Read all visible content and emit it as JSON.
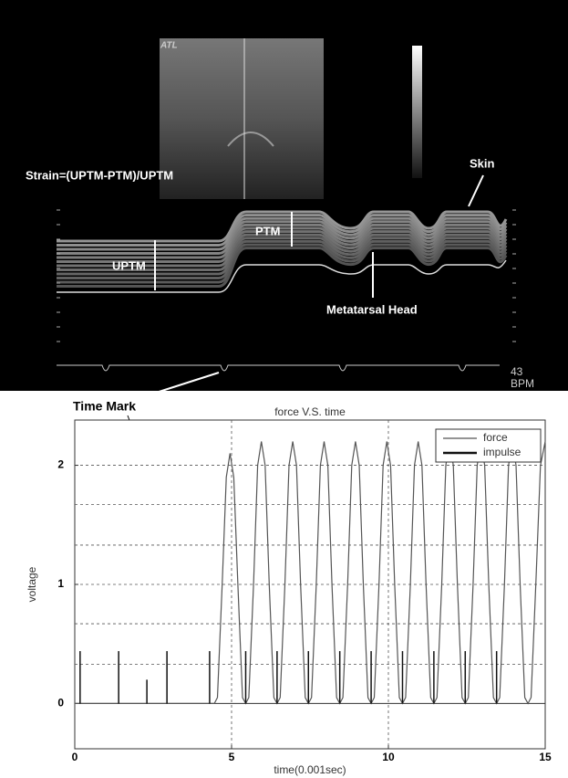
{
  "image": {
    "logo": "ATL",
    "formula": "Strain=(UPTM-PTM)/UPTM",
    "skin": "Skin",
    "ptm": "PTM",
    "uptm": "UPTM",
    "head": "Metatarsal Head",
    "rate": "43",
    "rate_unit": "BPM",
    "time_mark": "Time Mark"
  },
  "chart_data": {
    "type": "line",
    "title": "force V.S. time",
    "xlabel": "time(0.001sec)",
    "ylabel": "voltage",
    "xlim": [
      0,
      15
    ],
    "xticks": [
      0,
      5,
      10,
      15
    ],
    "ylim": [
      -0.38,
      2.38
    ],
    "yticks": [
      0,
      1,
      2
    ],
    "ygrid": [
      0.33,
      0.67,
      1,
      1.33,
      1.67,
      2
    ],
    "xgrid": [
      5,
      10
    ],
    "legend": "upper right",
    "series": [
      {
        "name": "force",
        "color": "#555555",
        "width": 1.2,
        "x": [
          0,
          4.45,
          4.55,
          4.7,
          4.83,
          4.95,
          5.07,
          5.2,
          5.35,
          5.45,
          5.55,
          5.7,
          5.83,
          5.95,
          6.07,
          6.2,
          6.35,
          6.45,
          6.55,
          6.7,
          6.83,
          6.95,
          7.07,
          7.2,
          7.35,
          7.45,
          7.55,
          7.7,
          7.83,
          7.95,
          8.07,
          8.2,
          8.35,
          8.45,
          8.55,
          8.7,
          8.83,
          8.95,
          9.07,
          9.2,
          9.35,
          9.45,
          9.55,
          9.7,
          9.83,
          9.95,
          10.07,
          10.2,
          10.35,
          10.45,
          10.55,
          10.7,
          10.83,
          10.95,
          11.07,
          11.2,
          11.35,
          11.45,
          11.55,
          11.7,
          11.83,
          11.95,
          12.07,
          12.2,
          12.35,
          12.45,
          12.55,
          12.7,
          12.83,
          12.95,
          13.07,
          13.2,
          13.35,
          13.45,
          13.55,
          13.7,
          13.83,
          13.95,
          14.07,
          14.2,
          14.35,
          14.45,
          14.55,
          14.7,
          14.85,
          15
        ],
        "values": [
          0,
          0,
          0.05,
          1.0,
          1.9,
          2.1,
          1.9,
          1.0,
          0.05,
          0,
          0.05,
          1.0,
          2.0,
          2.2,
          2.0,
          1.0,
          0.05,
          0,
          0.05,
          1.0,
          2.0,
          2.2,
          2.0,
          1.0,
          0.05,
          0,
          0.05,
          1.0,
          2.0,
          2.2,
          2.0,
          1.0,
          0.05,
          0,
          0.05,
          1.0,
          2.0,
          2.2,
          2.0,
          1.0,
          0.05,
          0,
          0.05,
          1.0,
          2.0,
          2.2,
          2.0,
          1.0,
          0.05,
          0,
          0.05,
          1.0,
          2.0,
          2.2,
          2.0,
          1.0,
          0.05,
          0,
          0.05,
          1.0,
          2.0,
          2.2,
          2.0,
          1.0,
          0.05,
          0,
          0.05,
          1.0,
          2.0,
          2.2,
          2.0,
          1.0,
          0.05,
          0,
          0.05,
          1.0,
          2.0,
          2.2,
          2.0,
          1.0,
          0.05,
          0,
          0.05,
          1.0,
          2.0,
          2.2
        ]
      },
      {
        "name": "impulse",
        "color": "#111111",
        "width": 2.5,
        "kind": "impulse",
        "x": [
          0.17,
          1.4,
          2.3,
          2.94,
          4.3,
          5.45,
          6.45,
          7.45,
          8.45,
          9.45,
          10.45,
          11.45,
          12.45,
          13.45
        ],
        "values": [
          0.44,
          0.44,
          0.2,
          0.44,
          0.44,
          0.44,
          0.44,
          0.44,
          0.44,
          0.44,
          0.44,
          0.44,
          0.44,
          0.44
        ]
      }
    ]
  }
}
